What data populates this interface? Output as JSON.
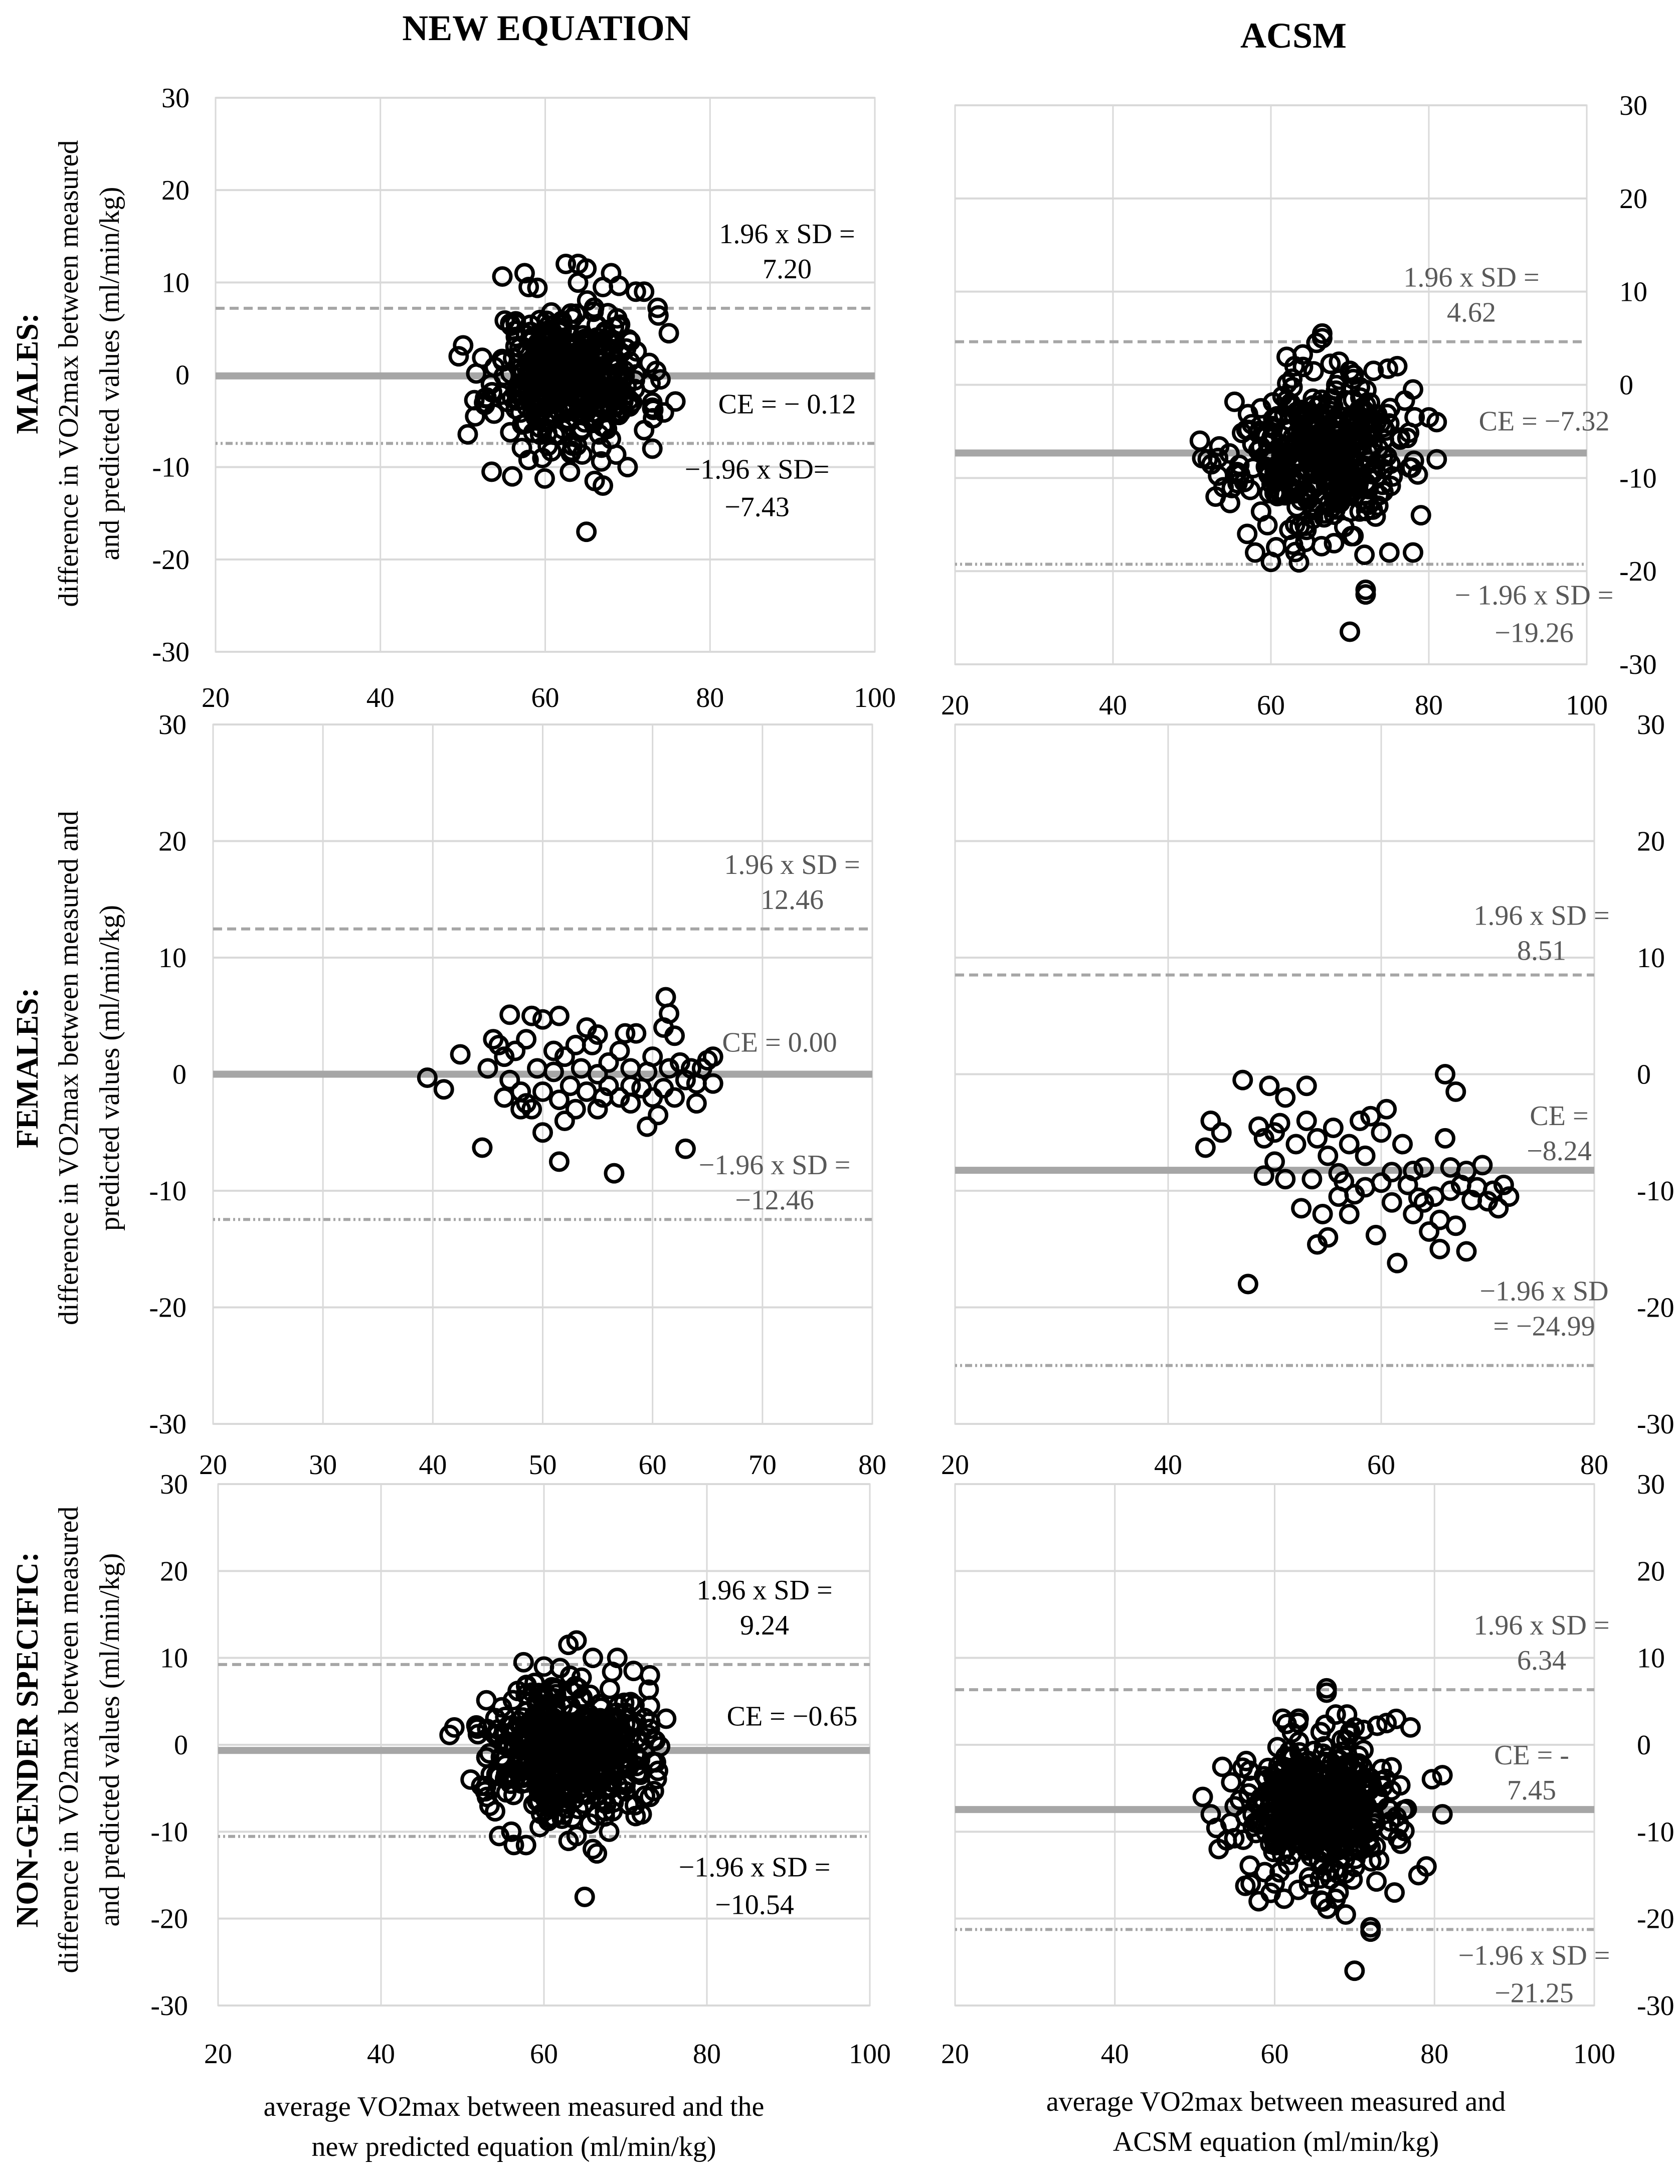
{
  "column_titles": {
    "left": "NEW EQUATION",
    "right": "ACSM"
  },
  "row_labels": [
    {
      "group": "MALES:",
      "line1": "difference in VO2max between measured",
      "line2": "and predicted values (ml/min/kg)"
    },
    {
      "group": "FEMALES:",
      "line1": "difference in VO2max between measured and",
      "line2": "predicted values (ml/min/kg)"
    },
    {
      "group": "NON-GENDER SPECIFIC:",
      "line1": "difference in VO2max between measured",
      "line2": "and predicted values (ml/min/kg)"
    }
  ],
  "x_axis_titles": {
    "left": {
      "line1": "average VO2max between measured and the",
      "line2": "new predicted equation  (ml/min/kg)"
    },
    "right": {
      "line1": "average VO2max between measured and",
      "line2": "ACSM equation (ml/min/kg)"
    }
  },
  "colors": {
    "mean_line": "#a6a6a6",
    "limit_line": "#a6a6a6",
    "grid": "#d9d9d9",
    "marker": "#000000",
    "text": "#000000",
    "muted_text": "#595959"
  },
  "chart_data": [
    {
      "id": "males-new",
      "type": "scatter",
      "xlim": [
        20,
        100
      ],
      "xticks": [
        20,
        40,
        60,
        80,
        100
      ],
      "ylim": [
        -30,
        30
      ],
      "yticks": [
        -30,
        -20,
        -10,
        0,
        10,
        20,
        30
      ],
      "y_axis_side": "left",
      "mean": -0.12,
      "upper": 7.2,
      "lower": -7.43,
      "labels": {
        "upper": [
          "1.96 x SD =",
          "7.20"
        ],
        "mean": [
          "CE = − 0.12"
        ],
        "lower": [
          "−1.96 x SD=",
          "−7.43"
        ]
      },
      "cluster": {
        "cx": 63,
        "cy": -0.1,
        "sx": 4.6,
        "sy": 3.7,
        "n": 420,
        "seed": 11
      },
      "points": [
        [
          49.5,
          2
        ],
        [
          51.5,
          -4.5
        ],
        [
          53.5,
          -10.5
        ],
        [
          56,
          -11
        ],
        [
          57.5,
          11
        ],
        [
          58,
          9.5
        ],
        [
          62.5,
          12
        ],
        [
          64,
          12
        ],
        [
          65,
          11.5
        ],
        [
          67,
          9.5
        ],
        [
          68,
          11
        ],
        [
          71,
          9
        ],
        [
          72,
          9
        ],
        [
          75,
          4.5
        ],
        [
          73,
          -3
        ],
        [
          72,
          -6
        ],
        [
          73,
          -8
        ],
        [
          70,
          -10
        ],
        [
          66,
          -11.5
        ],
        [
          67,
          -12
        ],
        [
          63,
          -10.5
        ],
        [
          65,
          -17
        ]
      ]
    },
    {
      "id": "males-acsm",
      "type": "scatter",
      "xlim": [
        20,
        100
      ],
      "xticks": [
        20,
        40,
        60,
        80,
        100
      ],
      "ylim": [
        -30,
        30
      ],
      "yticks": [
        -30,
        -20,
        -10,
        0,
        10,
        20,
        30
      ],
      "y_axis_side": "right",
      "mean": -7.32,
      "upper": 4.62,
      "lower": -19.26,
      "labels": {
        "upper": [
          "1.96 x SD =",
          "4.62"
        ],
        "mean": [
          "CE = −7.32"
        ],
        "lower": [
          "− 1.96 x SD =",
          "−19.26"
        ]
      },
      "cluster": {
        "cx": 66,
        "cy": -7.5,
        "sx": 5,
        "sy": 3.9,
        "n": 420,
        "seed": 23
      },
      "points": [
        [
          51,
          -6
        ],
        [
          52,
          -8
        ],
        [
          53,
          -12
        ],
        [
          54,
          -11
        ],
        [
          57,
          -16
        ],
        [
          58,
          -18
        ],
        [
          60,
          -19
        ],
        [
          62,
          3
        ],
        [
          63,
          2
        ],
        [
          66.5,
          5.5
        ],
        [
          66.5,
          5
        ],
        [
          70,
          1.5
        ],
        [
          73,
          1.5
        ],
        [
          76,
          2
        ],
        [
          78,
          -0.5
        ],
        [
          80,
          -3.5
        ],
        [
          81,
          -4
        ],
        [
          81,
          -8
        ],
        [
          79,
          -14
        ],
        [
          78,
          -18
        ],
        [
          75,
          -18
        ],
        [
          72,
          -22
        ],
        [
          72,
          -22.5
        ],
        [
          70,
          -26.5
        ],
        [
          68,
          -17
        ]
      ]
    },
    {
      "id": "females-new",
      "type": "scatter",
      "xlim": [
        20,
        80
      ],
      "xticks": [
        20,
        30,
        40,
        50,
        60,
        70,
        80
      ],
      "ylim": [
        -30,
        30
      ],
      "yticks": [
        -30,
        -20,
        -10,
        0,
        10,
        20,
        30
      ],
      "y_axis_side": "left",
      "mean": 0.0,
      "upper": 12.46,
      "lower": -12.46,
      "labels": {
        "upper": [
          "1.96 x SD =",
          "12.46"
        ],
        "mean": [
          "CE = 0.00"
        ],
        "lower": [
          "−1.96 x SD =",
          "−12.46"
        ]
      },
      "points": [
        [
          39.5,
          -0.3
        ],
        [
          41,
          -1.3
        ],
        [
          42.5,
          1.7
        ],
        [
          44.5,
          -6.3
        ],
        [
          45,
          0.5
        ],
        [
          45.5,
          3
        ],
        [
          46,
          2.5
        ],
        [
          46.5,
          1.5
        ],
        [
          46.5,
          -2
        ],
        [
          47,
          5.1
        ],
        [
          47,
          -0.5
        ],
        [
          47.5,
          2
        ],
        [
          48,
          -1.5
        ],
        [
          48,
          -3
        ],
        [
          48.5,
          3
        ],
        [
          48.5,
          -2.5
        ],
        [
          49,
          5
        ],
        [
          49,
          -3
        ],
        [
          49.5,
          0.5
        ],
        [
          50,
          4.7
        ],
        [
          50,
          -1.5
        ],
        [
          50,
          -5
        ],
        [
          51,
          2
        ],
        [
          51,
          0.2
        ],
        [
          51.5,
          5
        ],
        [
          51.5,
          -2.2
        ],
        [
          51.5,
          -7.5
        ],
        [
          52,
          -4
        ],
        [
          52,
          1.5
        ],
        [
          52.5,
          -1
        ],
        [
          53,
          2.5
        ],
        [
          53,
          -3
        ],
        [
          53.5,
          0.5
        ],
        [
          54,
          4
        ],
        [
          54,
          -1.5
        ],
        [
          54.5,
          2.5
        ],
        [
          55,
          0
        ],
        [
          55,
          -3
        ],
        [
          55,
          3.4
        ],
        [
          55.5,
          -2
        ],
        [
          56,
          1
        ],
        [
          56,
          -1
        ],
        [
          56.5,
          -8.5
        ],
        [
          57,
          2
        ],
        [
          57,
          -2
        ],
        [
          57.5,
          3.5
        ],
        [
          58,
          0.5
        ],
        [
          58,
          -1
        ],
        [
          58,
          -2.5
        ],
        [
          58.5,
          3.5
        ],
        [
          59,
          -1.2
        ],
        [
          59.5,
          0.2
        ],
        [
          59.5,
          -4.5
        ],
        [
          60,
          1.5
        ],
        [
          60,
          -2
        ],
        [
          60.5,
          -3.5
        ],
        [
          61,
          4
        ],
        [
          61,
          -1.2
        ],
        [
          61.2,
          6.6
        ],
        [
          61.5,
          5.2
        ],
        [
          61.5,
          0.5
        ],
        [
          62,
          -2
        ],
        [
          62,
          3.3
        ],
        [
          62.5,
          1
        ],
        [
          63,
          -0.5
        ],
        [
          63,
          -6.4
        ],
        [
          63.5,
          0.5
        ],
        [
          64,
          -0.8
        ],
        [
          64,
          -2.5
        ],
        [
          64.5,
          0.5
        ],
        [
          65,
          1.2
        ],
        [
          65.5,
          -0.8
        ],
        [
          65.5,
          1.5
        ]
      ]
    },
    {
      "id": "females-acsm",
      "type": "scatter",
      "xlim": [
        20,
        80
      ],
      "xticks": [
        20,
        40,
        60,
        80
      ],
      "ylim": [
        -30,
        30
      ],
      "yticks": [
        -30,
        -20,
        -10,
        0,
        10,
        20,
        30
      ],
      "y_axis_side": "right",
      "mean": -8.24,
      "upper": 8.51,
      "lower": -24.99,
      "labels": {
        "upper": [
          "1.96 x SD =",
          "8.51"
        ],
        "mean": [
          "CE =",
          "−8.24"
        ],
        "lower": [
          "−1.96 x SD",
          "= −24.99"
        ]
      },
      "points": [
        [
          43.5,
          -6.3
        ],
        [
          44,
          -4
        ],
        [
          45,
          -5
        ],
        [
          47,
          -0.5
        ],
        [
          47.5,
          -18
        ],
        [
          48.5,
          -4.5
        ],
        [
          49,
          -5.5
        ],
        [
          49,
          -8.7
        ],
        [
          49.5,
          -1
        ],
        [
          50,
          -5
        ],
        [
          50,
          -7.5
        ],
        [
          50.5,
          -4.2
        ],
        [
          51,
          -9
        ],
        [
          51,
          -2
        ],
        [
          52,
          -6
        ],
        [
          52.5,
          -11.5
        ],
        [
          53,
          -4
        ],
        [
          53,
          -1
        ],
        [
          53.5,
          -9
        ],
        [
          54,
          -14.6
        ],
        [
          54,
          -5.5
        ],
        [
          54.5,
          -12
        ],
        [
          55,
          -14
        ],
        [
          55,
          -7
        ],
        [
          55.5,
          -4.6
        ],
        [
          56,
          -8.5
        ],
        [
          56,
          -10.5
        ],
        [
          56.5,
          -9.2
        ],
        [
          57,
          -12
        ],
        [
          57,
          -6
        ],
        [
          57.5,
          -10.3
        ],
        [
          58,
          -4
        ],
        [
          58.5,
          -7
        ],
        [
          58.5,
          -9.7
        ],
        [
          59,
          -3.6
        ],
        [
          59.5,
          -13.8
        ],
        [
          60,
          -5
        ],
        [
          60,
          -9.3
        ],
        [
          60.5,
          -3
        ],
        [
          61,
          -8.4
        ],
        [
          61,
          -11
        ],
        [
          61.5,
          -16.2
        ],
        [
          62,
          -6
        ],
        [
          62.5,
          -9.5
        ],
        [
          63,
          -8.3
        ],
        [
          63,
          -12
        ],
        [
          63.5,
          -10.6
        ],
        [
          64,
          -8
        ],
        [
          64,
          -11
        ],
        [
          64.5,
          -13.5
        ],
        [
          65,
          -10.5
        ],
        [
          65.5,
          -15
        ],
        [
          65.5,
          -12.5
        ],
        [
          66,
          0
        ],
        [
          66,
          -5.5
        ],
        [
          66.5,
          -8
        ],
        [
          66.5,
          -10
        ],
        [
          67,
          -1.5
        ],
        [
          67,
          -13
        ],
        [
          67.5,
          -9.5
        ],
        [
          68,
          -8.3
        ],
        [
          68,
          -15.2
        ],
        [
          68.5,
          -10.8
        ],
        [
          69,
          -9.7
        ],
        [
          69.5,
          -7.8
        ],
        [
          70,
          -10.9
        ],
        [
          70.5,
          -10
        ],
        [
          71,
          -11.5
        ],
        [
          71.5,
          -9.5
        ],
        [
          72,
          -10.5
        ]
      ]
    },
    {
      "id": "all-new",
      "type": "scatter",
      "xlim": [
        20,
        100
      ],
      "xticks": [
        20,
        40,
        60,
        80,
        100
      ],
      "ylim": [
        -30,
        30
      ],
      "yticks": [
        -30,
        -20,
        -10,
        0,
        10,
        20,
        30
      ],
      "y_axis_side": "left",
      "mean": -0.65,
      "upper": 9.24,
      "lower": -10.54,
      "labels": {
        "upper": [
          "1.96 x SD =",
          "9.24"
        ],
        "mean": [
          "CE = −0.65"
        ],
        "lower": [
          "−1.96 x SD =",
          "−10.54"
        ]
      },
      "cluster": {
        "cx": 63,
        "cy": -0.4,
        "sx": 4.7,
        "sy": 3.8,
        "n": 480,
        "seed": 37
      },
      "points": [
        [
          49,
          2
        ],
        [
          51,
          -4
        ],
        [
          53,
          -6
        ],
        [
          54.5,
          -10.5
        ],
        [
          56,
          -10
        ],
        [
          57.5,
          9.5
        ],
        [
          60,
          9
        ],
        [
          63,
          11.5
        ],
        [
          64,
          12
        ],
        [
          66,
          10
        ],
        [
          69,
          10
        ],
        [
          71,
          8.5
        ],
        [
          73,
          8
        ],
        [
          75,
          3
        ],
        [
          74,
          -3
        ],
        [
          73,
          -6
        ],
        [
          72,
          -8
        ],
        [
          68,
          -10
        ],
        [
          66,
          -12
        ],
        [
          66.5,
          -12.5
        ],
        [
          64,
          -10.5
        ],
        [
          65,
          -17.5
        ]
      ]
    },
    {
      "id": "all-acsm",
      "type": "scatter",
      "xlim": [
        20,
        100
      ],
      "xticks": [
        20,
        40,
        60,
        80,
        100
      ],
      "ylim": [
        -30,
        30
      ],
      "yticks": [
        -30,
        -20,
        -10,
        0,
        10,
        20,
        30
      ],
      "y_axis_side": "right",
      "mean": -7.45,
      "upper": 6.34,
      "lower": -21.25,
      "labels": {
        "upper": [
          "1.96 x SD =",
          "6.34"
        ],
        "mean": [
          "CE = -",
          "7.45"
        ],
        "lower": [
          "−1.96 x SD =",
          "−21.25"
        ]
      },
      "cluster": {
        "cx": 66,
        "cy": -7.5,
        "sx": 5,
        "sy": 4,
        "n": 480,
        "seed": 53
      },
      "points": [
        [
          51,
          -6
        ],
        [
          52,
          -8
        ],
        [
          53,
          -12
        ],
        [
          54,
          -11
        ],
        [
          57,
          -16
        ],
        [
          58,
          -18
        ],
        [
          61,
          3
        ],
        [
          63,
          3
        ],
        [
          66.5,
          6.5
        ],
        [
          66.5,
          6
        ],
        [
          70,
          2
        ],
        [
          74,
          2.5
        ],
        [
          77,
          2
        ],
        [
          81,
          -3.5
        ],
        [
          81,
          -8
        ],
        [
          79,
          -14
        ],
        [
          78,
          -15
        ],
        [
          75,
          -17
        ],
        [
          72,
          -21.5
        ],
        [
          72,
          -21
        ],
        [
          70,
          -26
        ],
        [
          68,
          -17
        ]
      ]
    }
  ]
}
